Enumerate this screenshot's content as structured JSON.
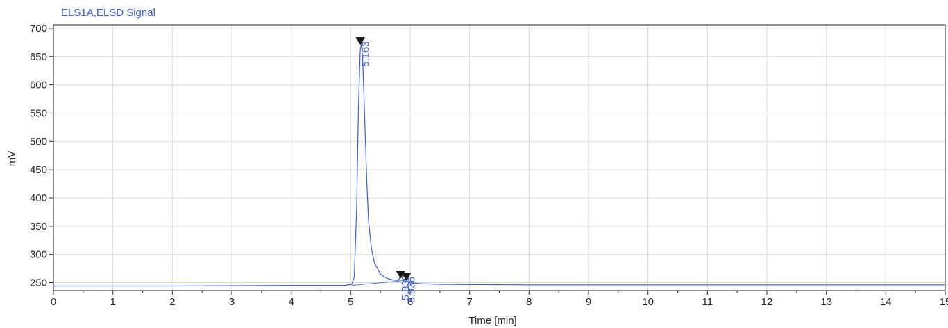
{
  "chart_data": {
    "type": "line",
    "title": "ELS1A,ELSD Signal",
    "xlabel": "Time [min]",
    "ylabel": "mV",
    "xlim": [
      0,
      15
    ],
    "ylim": [
      236,
      706
    ],
    "xticks": [
      0,
      1,
      2,
      3,
      4,
      5,
      6,
      7,
      8,
      9,
      10,
      11,
      12,
      13,
      14,
      15
    ],
    "yticks": [
      250,
      300,
      350,
      400,
      450,
      500,
      550,
      600,
      650,
      700
    ],
    "grid": true,
    "series": [
      {
        "color": "#3b5fd0",
        "x": [
          0,
          1,
          2,
          3,
          4,
          4.9,
          5.02,
          5.06,
          5.1,
          5.13,
          5.16,
          5.18,
          5.2,
          5.23,
          5.27,
          5.3,
          5.35,
          5.4,
          5.5,
          5.6,
          5.7,
          5.8,
          5.84,
          5.9,
          5.94,
          6.0,
          6.2,
          6.5,
          7,
          8,
          9,
          10,
          11,
          12,
          13,
          14,
          15
        ],
        "y": [
          244,
          244,
          244,
          244.5,
          245,
          245,
          247,
          260,
          380,
          560,
          660,
          672,
          650,
          560,
          430,
          360,
          310,
          285,
          265,
          258,
          255,
          254,
          262,
          254,
          252,
          250,
          248,
          247,
          246.5,
          246,
          246,
          246,
          246,
          246,
          246,
          246,
          246
        ]
      }
    ],
    "peaks": [
      {
        "x": 5.163,
        "y": 675,
        "label": "5.163"
      },
      {
        "x": 5.839,
        "y": 262,
        "label": "5.839"
      },
      {
        "x": 5.936,
        "y": 258,
        "label": "5.936"
      }
    ]
  }
}
